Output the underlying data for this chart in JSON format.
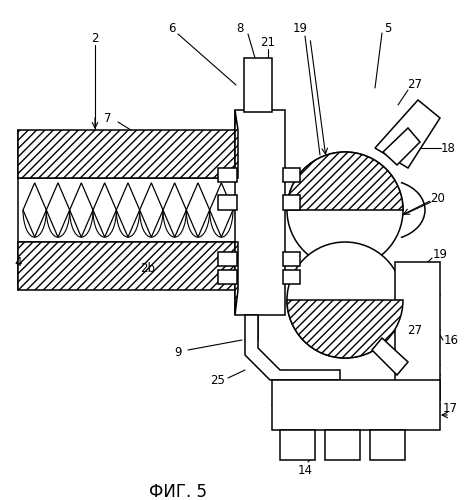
{
  "title": "ФИГ. 5",
  "bg_color": "#ffffff",
  "lc": "#000000",
  "lw": 1.1,
  "fs_label": 8.5,
  "fs_title": 12.0,
  "figsize": [
    4.66,
    5.0
  ],
  "dpi": 100
}
